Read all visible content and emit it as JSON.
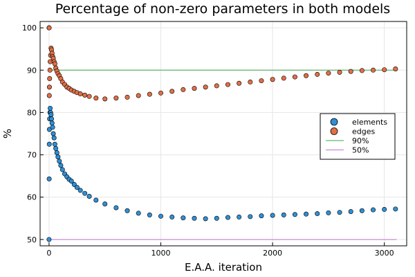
{
  "chart_data": {
    "type": "scatter",
    "title": "Percentage of non-zero parameters in both models",
    "xlabel": "E.A.A. iteration",
    "ylabel": "%",
    "xlim": [
      -80,
      3200
    ],
    "ylim": [
      48.5,
      101.5
    ],
    "xticks": [
      0,
      1000,
      2000,
      3000
    ],
    "yticks": [
      50,
      60,
      70,
      80,
      90,
      100
    ],
    "grid": true,
    "legend_position": "right",
    "colors": {
      "elements": "#2f8fd5",
      "edges": "#e26f46",
      "line90": "#3da44d",
      "line50": "#c271d2"
    },
    "series": [
      {
        "name": "elements",
        "kind": "scatter",
        "color": "#2f8fd5",
        "x": [
          0,
          1,
          2,
          3,
          5,
          8,
          10,
          14,
          18,
          22,
          27,
          32,
          38,
          45,
          52,
          60,
          70,
          80,
          92,
          105,
          120,
          140,
          160,
          180,
          200,
          225,
          250,
          280,
          320,
          360,
          420,
          500,
          600,
          700,
          800,
          900,
          1000,
          1100,
          1200,
          1300,
          1400,
          1500,
          1600,
          1700,
          1800,
          1900,
          2000,
          2100,
          2200,
          2300,
          2400,
          2500,
          2600,
          2700,
          2800,
          2900,
          3000,
          3100
        ],
        "y": [
          50,
          64.3,
          72.5,
          76,
          78.5,
          80,
          81,
          80,
          79.5,
          78.5,
          77.5,
          76.5,
          75,
          74,
          72.5,
          71.5,
          70.5,
          69.5,
          68.5,
          67.5,
          66.5,
          65.5,
          64.8,
          64.2,
          63.8,
          63,
          62.3,
          61.6,
          60.9,
          60.2,
          59.3,
          58.4,
          57.5,
          56.8,
          56.2,
          55.8,
          55.5,
          55.3,
          55.1,
          55.0,
          54.9,
          55.0,
          55.2,
          55.3,
          55.4,
          55.6,
          55.7,
          55.8,
          55.9,
          56.0,
          56.1,
          56.3,
          56.4,
          56.6,
          56.8,
          57.0,
          57.1,
          57.2
        ]
      },
      {
        "name": "edges",
        "kind": "scatter",
        "color": "#e26f46",
        "x": [
          0,
          1,
          2,
          3,
          5,
          8,
          10,
          14,
          18,
          22,
          27,
          32,
          38,
          45,
          52,
          60,
          70,
          80,
          92,
          105,
          120,
          140,
          160,
          180,
          200,
          225,
          250,
          280,
          320,
          360,
          420,
          500,
          600,
          700,
          800,
          900,
          1000,
          1100,
          1200,
          1300,
          1400,
          1500,
          1600,
          1700,
          1800,
          1900,
          2000,
          2100,
          2200,
          2300,
          2400,
          2500,
          2600,
          2700,
          2800,
          2900,
          3000,
          3100
        ],
        "y": [
          100,
          100,
          84,
          86,
          88,
          90,
          92,
          93.5,
          95.2,
          94.8,
          94,
          93.2,
          92.8,
          92,
          91.5,
          90.5,
          89.8,
          89.2,
          88.7,
          88,
          87.2,
          86.6,
          86,
          85.7,
          85.3,
          85,
          84.7,
          84.4,
          84.1,
          83.8,
          83.4,
          83.2,
          83.4,
          83.6,
          84.0,
          84.3,
          84.6,
          85.0,
          85.4,
          85.7,
          86.0,
          86.3,
          86.6,
          86.9,
          87.2,
          87.5,
          87.8,
          88.1,
          88.4,
          88.7,
          89.0,
          89.3,
          89.5,
          89.7,
          89.9,
          90.0,
          90.1,
          90.3
        ]
      },
      {
        "name": "90%",
        "kind": "line",
        "color": "#3da44d",
        "x": [
          0,
          3110
        ],
        "y": [
          90,
          90
        ]
      },
      {
        "name": "50%",
        "kind": "line",
        "color": "#c271d2",
        "x": [
          0,
          3110
        ],
        "y": [
          50,
          50
        ]
      }
    ]
  }
}
